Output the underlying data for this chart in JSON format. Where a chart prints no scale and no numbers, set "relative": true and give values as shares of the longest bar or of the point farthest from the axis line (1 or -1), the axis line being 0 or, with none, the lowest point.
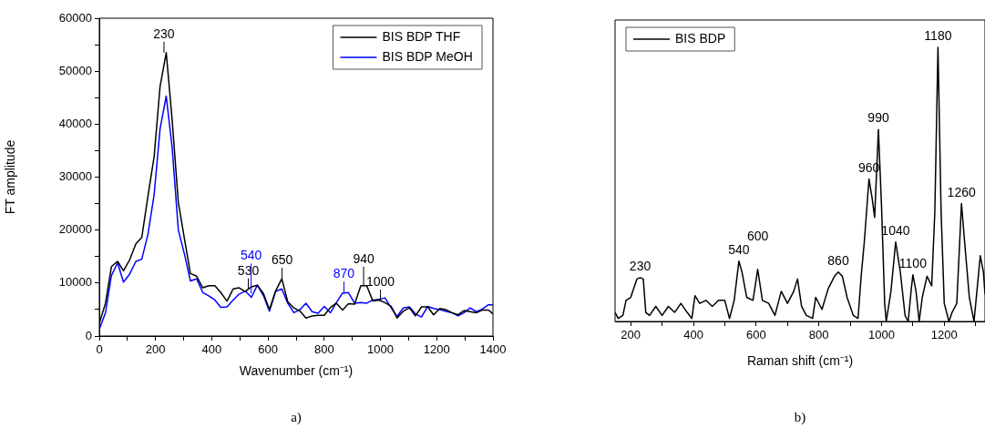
{
  "chart_data": [
    {
      "type": "line",
      "ylabel": "FT amplitude",
      "xlabel": "Wavenumber (cm⁻¹)",
      "legend": "top right",
      "grid": false,
      "marker": "none",
      "line_style": "solid",
      "x": [
        0,
        22,
        43,
        65,
        86,
        108,
        130,
        151,
        173,
        195,
        216,
        238,
        259,
        281,
        303,
        324,
        346,
        368,
        389,
        411,
        432,
        454,
        476,
        497,
        519,
        541,
        562,
        584,
        605,
        627,
        649,
        670,
        692,
        714,
        735,
        757,
        778,
        800,
        822,
        843,
        865,
        886,
        908,
        930,
        951,
        973,
        995,
        1016,
        1038,
        1059,
        1081,
        1103,
        1124,
        1146,
        1168,
        1189,
        1211,
        1232,
        1254,
        1276,
        1297,
        1319,
        1341,
        1362,
        1384,
        1400
      ],
      "series": [
        {
          "name": "BIS BDP THF",
          "color": "#000000",
          "values": [
            2400,
            6200,
            13100,
            14100,
            12300,
            14400,
            17400,
            18600,
            26400,
            33900,
            47100,
            53500,
            40800,
            25200,
            18300,
            11800,
            11300,
            9100,
            9500,
            9500,
            8200,
            6600,
            8900,
            9100,
            8400,
            9300,
            9600,
            8000,
            5000,
            8500,
            10800,
            6500,
            5300,
            4700,
            3400,
            3800,
            3900,
            3900,
            5400,
            6200,
            4900,
            6100,
            6000,
            9500,
            9500,
            6600,
            6800,
            6300,
            5600,
            3400,
            4700,
            5300,
            3800,
            5500,
            5500,
            4000,
            5200,
            5000,
            4400,
            4000,
            4800,
            4600,
            4400,
            4900,
            4900,
            4200
          ]
        },
        {
          "name": "BIS BDP MeOH",
          "color": "#0000ff",
          "values": [
            1300,
            4400,
            11400,
            13800,
            10200,
            11700,
            14100,
            14500,
            19200,
            26700,
            39100,
            45300,
            35600,
            20000,
            15400,
            10400,
            10800,
            8200,
            7600,
            6800,
            5400,
            5500,
            6800,
            7900,
            8500,
            7300,
            9600,
            7600,
            4700,
            8400,
            8900,
            6200,
            4400,
            5000,
            6200,
            4600,
            4300,
            5600,
            4400,
            6300,
            8100,
            8200,
            6200,
            6300,
            6200,
            6800,
            6900,
            7200,
            5300,
            3700,
            5300,
            5500,
            4200,
            3600,
            5600,
            5200,
            5000,
            4700,
            4400,
            3800,
            4400,
            5300,
            4600,
            5100,
            5900,
            5900
          ]
        }
      ],
      "xlim": [
        0,
        1400
      ],
      "xticks": [
        0,
        {
          "value": 100,
          "label": null
        },
        200,
        {
          "value": 300,
          "label": null
        },
        400,
        {
          "value": 500,
          "label": null
        },
        600,
        {
          "value": 700,
          "label": null
        },
        800,
        {
          "value": 900,
          "label": null
        },
        1000,
        {
          "value": 1100,
          "label": null
        },
        1200,
        {
          "value": 1300,
          "label": null
        },
        1400
      ],
      "ylim": [
        0,
        60000
      ],
      "yticks": [
        0,
        {
          "value": 5000,
          "label": null
        },
        10000,
        {
          "value": 15000,
          "label": null
        },
        20000,
        {
          "value": 25000,
          "label": null
        },
        30000,
        {
          "value": 35000,
          "label": null
        },
        40000,
        {
          "value": 45000,
          "label": null
        },
        50000,
        {
          "value": 55000,
          "label": null
        },
        60000
      ],
      "annotations": [
        {
          "text": "230",
          "x": 230,
          "y": 53500
        },
        {
          "text": "530",
          "x": 530,
          "y": 8800
        },
        {
          "text": "540",
          "x": 540,
          "y": 8000
        },
        {
          "text": "650",
          "x": 650,
          "y": 10800
        },
        {
          "text": "870",
          "x": 870,
          "y": 8200
        },
        {
          "text": "940",
          "x": 940,
          "y": 9500
        },
        {
          "text": "1000",
          "x": 1000,
          "y": 6700
        },
        "a)"
      ]
    },
    {
      "type": "line",
      "xlabel": "Raman shift (cm⁻¹)",
      "legend": "top left",
      "grid": false,
      "marker": "none",
      "line_style": "solid",
      "relative": true,
      "x": [
        150,
        160,
        175,
        185,
        200,
        210,
        220,
        230,
        240,
        248,
        260,
        280,
        300,
        320,
        340,
        360,
        380,
        395,
        405,
        420,
        440,
        460,
        480,
        500,
        515,
        530,
        545,
        555,
        570,
        590,
        605,
        620,
        640,
        660,
        680,
        700,
        720,
        732,
        745,
        760,
        780,
        790,
        810,
        830,
        850,
        862,
        875,
        890,
        910,
        925,
        935,
        945,
        960,
        970,
        978,
        990,
        1000,
        1010,
        1015,
        1030,
        1045,
        1060,
        1075,
        1085,
        1095,
        1100,
        1110,
        1120,
        1130,
        1145,
        1160,
        1170,
        1180,
        1190,
        1200,
        1215,
        1225,
        1240,
        1255,
        1265,
        1280,
        1295,
        1305,
        1315,
        1325,
        1330
      ],
      "series": [
        {
          "name": "BIS BDP",
          "color": "#000000",
          "values": [
            0.033,
            0.011,
            0.022,
            0.077,
            0.088,
            0.122,
            0.155,
            0.16,
            0.155,
            0.033,
            0.022,
            0.055,
            0.022,
            0.055,
            0.033,
            0.066,
            0.033,
            0.011,
            0.094,
            0.066,
            0.077,
            0.055,
            0.077,
            0.077,
            0.011,
            0.077,
            0.22,
            0.18,
            0.088,
            0.077,
            0.19,
            0.077,
            0.066,
            0.022,
            0.11,
            0.066,
            0.11,
            0.155,
            0.055,
            0.022,
            0.011,
            0.088,
            0.044,
            0.12,
            0.165,
            0.18,
            0.165,
            0.088,
            0.022,
            0.011,
            0.165,
            0.29,
            0.52,
            0.45,
            0.38,
            0.7,
            0.42,
            0.066,
            0,
            0.11,
            0.29,
            0.18,
            0.022,
            0,
            0.12,
            0.17,
            0.11,
            0,
            0.088,
            0.165,
            0.13,
            0.4,
            1,
            0.4,
            0.066,
            0,
            0.033,
            0.066,
            0.43,
            0.29,
            0.088,
            0,
            0.12,
            0.24,
            0.18,
            0.1
          ]
        }
      ],
      "xlim": [
        150,
        1330
      ],
      "xticks": [
        200,
        {
          "value": 300,
          "label": null
        },
        400,
        {
          "value": 500,
          "label": null
        },
        600,
        {
          "value": 700,
          "label": null
        },
        800,
        {
          "value": 900,
          "label": null
        },
        1000,
        {
          "value": 1100,
          "label": null
        },
        1200,
        {
          "value": 1300,
          "label": null
        }
      ],
      "annotations": [
        {
          "text": "230",
          "x": 230,
          "y": 0.16
        },
        {
          "text": "540",
          "x": 545,
          "y": 0.22
        },
        {
          "text": "600",
          "x": 605,
          "y": 0.19
        },
        {
          "text": "860",
          "x": 862,
          "y": 0.18
        },
        {
          "text": "960",
          "x": 960,
          "y": 0.52
        },
        {
          "text": "990",
          "x": 990,
          "y": 0.7
        },
        {
          "text": "1040",
          "x": 1045,
          "y": 0.29
        },
        {
          "text": "1100",
          "x": 1100,
          "y": 0.17
        },
        {
          "text": "1180",
          "x": 1180,
          "y": 1
        },
        {
          "text": "1260",
          "x": 1255,
          "y": 0.43
        },
        "b)"
      ]
    }
  ]
}
